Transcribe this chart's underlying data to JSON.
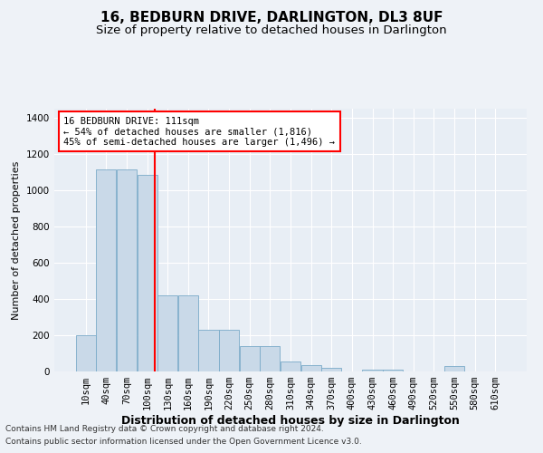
{
  "title": "16, BEDBURN DRIVE, DARLINGTON, DL3 8UF",
  "subtitle": "Size of property relative to detached houses in Darlington",
  "xlabel": "Distribution of detached houses by size in Darlington",
  "ylabel": "Number of detached properties",
  "footnote1": "Contains HM Land Registry data © Crown copyright and database right 2024.",
  "footnote2": "Contains public sector information licensed under the Open Government Licence v3.0.",
  "annotation_line1": "16 BEDBURN DRIVE: 111sqm",
  "annotation_line2": "← 54% of detached houses are smaller (1,816)",
  "annotation_line3": "45% of semi-detached houses are larger (1,496) →",
  "bar_color": "#c9d9e8",
  "bar_edge_color": "#7aaac8",
  "redline_x": 111,
  "categories": [
    "10sqm",
    "40sqm",
    "70sqm",
    "100sqm",
    "130sqm",
    "160sqm",
    "190sqm",
    "220sqm",
    "250sqm",
    "280sqm",
    "310sqm",
    "340sqm",
    "370sqm",
    "400sqm",
    "430sqm",
    "460sqm",
    "490sqm",
    "520sqm",
    "550sqm",
    "580sqm",
    "610sqm"
  ],
  "values": [
    200,
    1115,
    1115,
    1085,
    420,
    420,
    230,
    230,
    140,
    140,
    55,
    35,
    20,
    0,
    10,
    10,
    0,
    0,
    30,
    0,
    0
  ],
  "ylim": [
    0,
    1450
  ],
  "yticks": [
    0,
    200,
    400,
    600,
    800,
    1000,
    1200,
    1400
  ],
  "background_color": "#eef2f7",
  "plot_bg_color": "#e8eef5",
  "grid_color": "#ffffff",
  "title_fontsize": 11,
  "subtitle_fontsize": 9.5,
  "xlabel_fontsize": 9,
  "ylabel_fontsize": 8,
  "tick_fontsize": 7.5,
  "annotation_fontsize": 7.5,
  "footnote_fontsize": 6.5
}
